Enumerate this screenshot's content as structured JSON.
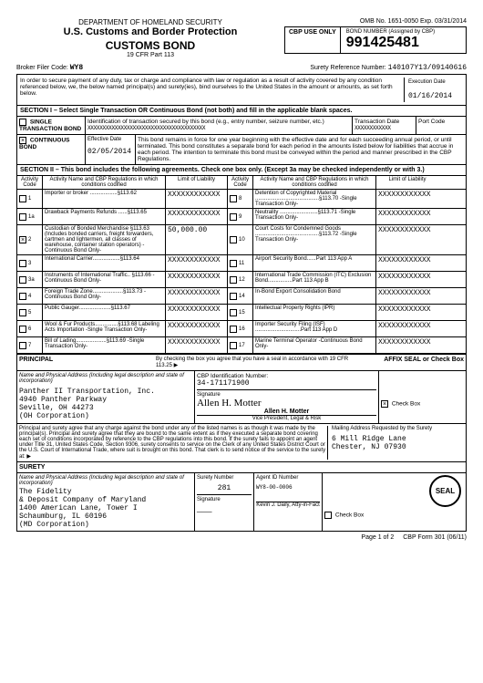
{
  "header": {
    "dept": "DEPARTMENT OF HOMELAND SECURITY",
    "agency": "U.S. Customs and Border Protection",
    "title": "CUSTOMS BOND",
    "cfr": "19 CFR Part 113",
    "omb": "OMB No. 1651-0050 Exp. 03/31/2014",
    "cbp_use": "CBP USE ONLY",
    "bond_label": "BOND NUMBER (Assigned by CBP)",
    "bond_number": "991425481"
  },
  "broker": {
    "filer_label": "Broker Filer Code:",
    "filer_code": "WY8",
    "surety_ref_label": "Surety Reference Number:",
    "surety_ref": "140107Y13/09140616"
  },
  "intro": {
    "text": "In order to secure payment of any duty, tax or charge and compliance with law or regulation as a result of activity covered by any condition referenced below, we, the below named principal(s) and surety(ies), bind ourselves to the United States in the amount or amounts, as set forth below.",
    "exec_label": "Execution Date",
    "exec_date": "01/16/2014"
  },
  "section1": {
    "header": "SECTION I – Select Single Transaction OR Continuous Bond (not both) and fill in the applicable blank spaces.",
    "single_label": "SINGLE TRANSACTION BOND",
    "single_desc": "Identification of transaction secured by this bond (e.g., entry number, seizure number, etc.)",
    "trans_date": "Transaction Date",
    "port_code": "Port Code",
    "continuous_label": "CONTINUOUS BOND",
    "continuous_checked": "×",
    "eff_label": "Effective Date",
    "eff_date": "02/05/2014",
    "cont_desc": "This bond remains in force for one year beginning with the effective date and for each succeeding annual period, or until terminated. This bond constitutes a separate bond for each period in the amounts listed below for liabilities that accrue in each period. The intention to terminate this bond must be conveyed within the period and manner prescribed in the CBP Regulations.",
    "xxx": "XXXXXXXXXXXXXXXXXXXXXXXXXXXXXXXXXXXXXXX",
    "xxx_sm": "XXXXXXXXXXXX"
  },
  "section2": {
    "header": "SECTION II – This bond includes the following agreements. Check one box only. (Except 3a may be checked independently or with 3.)",
    "col_ac": "Activity Code",
    "col_an": "Activity Name and CBP Regulations in which conditions codified",
    "col_ll": "Limit of Liability",
    "rows_left": [
      {
        "code": "1",
        "name": "Importer or broker ..................§113.62",
        "limit": "XXXXXXXXXXXX",
        "chk": ""
      },
      {
        "code": "1a",
        "name": "Drawback Payments Refunds ......§113.65",
        "limit": "XXXXXXXXXXXX",
        "chk": ""
      },
      {
        "code": "2",
        "name": "Custodian of Bonded Merchandise §113.63 (Includes bonded carriers, freight forwarders, cartmen and lightermen, all classes of warehouse, container station operators) -Continuous Bond Only-",
        "limit": "50,000.00",
        "chk": "×"
      },
      {
        "code": "3",
        "name": "International Carrier..................§113.64",
        "limit": "XXXXXXXXXXXX",
        "chk": ""
      },
      {
        "code": "3a",
        "name": "Instruments of International Traffic.. §113.66 -Continuous Bond Only-",
        "limit": "XXXXXXXXXXXX",
        "chk": ""
      },
      {
        "code": "4",
        "name": "Foreign Trade Zone....................§113.73 -Continuous Bond Only-",
        "limit": "XXXXXXXXXXXX",
        "chk": ""
      },
      {
        "code": "5",
        "name": "Public Gauger.....................§113.67",
        "limit": "XXXXXXXXXXXX",
        "chk": ""
      },
      {
        "code": "6",
        "name": "Wool & Fur Products...............§113.68 Labeling Acts Importation -Single Transaction Only-",
        "limit": "XXXXXXXXXXXX",
        "chk": ""
      },
      {
        "code": "7",
        "name": "Bill of Lading....................§113.69 -Single Transaction Only-",
        "limit": "XXXXXXXXXXXX",
        "chk": ""
      }
    ],
    "rows_right": [
      {
        "code": "8",
        "name": "Detention of Copyrighted Material ..........................................§113.70 -Single Transaction Only-",
        "limit": "XXXXXXXXXXXX"
      },
      {
        "code": "9",
        "name": "Neutrality .........................§113.71 -Single Transaction Only-",
        "limit": "XXXXXXXXXXXX"
      },
      {
        "code": "10",
        "name": "Court Costs for Condemned Goods ..........................................§113.72 -Single Transaction Only-",
        "limit": "XXXXXXXXXXXX"
      },
      {
        "code": "11",
        "name": "Airport Security Bond......Part 113 App A",
        "limit": "XXXXXXXXXXXX"
      },
      {
        "code": "12",
        "name": "International Trade Commission (ITC) Exclusion Bond................Part 113 App B",
        "limit": "XXXXXXXXXXXX"
      },
      {
        "code": "14",
        "name": "In-Bond Export Consolidation Bond",
        "limit": "XXXXXXXXXXXX"
      },
      {
        "code": "15",
        "name": "Intellectual Property Rights (IPR)",
        "limit": "XXXXXXXXXXXX"
      },
      {
        "code": "16",
        "name": "Importer Security Filing (ISF) ..............................Part 113 App D",
        "limit": "XXXXXXXXXXXX"
      },
      {
        "code": "17",
        "name": "Marine Terminal Operator -Continuous Bond Only-",
        "limit": "XXXXXXXXXXXX"
      }
    ]
  },
  "principal": {
    "hdr": "PRINCIPAL",
    "check_text": "By checking the box you agree that you have a seal in accordance with 19 CFR 113.25 ▶",
    "affix": "AFFIX SEAL or Check Box",
    "name_label": "Name and Physical Address (Including legal description and state of incorporation)",
    "cbp_id_label": "CBP Identification Number:",
    "cbp_id": "34-171171900",
    "name1": "Panther II Transportation, Inc.",
    "addr1": "4940 Panther Parkway",
    "addr2": "Seville, OH 44273",
    "addr3": "(OH Corporation)",
    "sig_label": "Signature",
    "sig_name": "Allen H. Motter",
    "sig_title": "Vice President, Legal & Risk",
    "checkbox_label": "Check Box",
    "checkbox_val": "×"
  },
  "fine_print": {
    "text": "Principal and surety agree that any charge against the bond under any of the listed names is as though it was made by the principal(s). Principal and surety agree that they are bound to the same extent as if they executed a separate bond covering each set of conditions incorporated by reference to the CBP regulations into this bond. If the surety fails to appoint an agent under Title 31, United States Code, Section 9306, surety consents to service on the Clerk of any United States District Court or the U.S. Court of International Trade, where suit is brought on this bond. That clerk is to send notice of the service to the surety at: ▶",
    "mail_label": "Mailing Address Requested by the Surety",
    "mail1": "6 Mill Ridge Lane",
    "mail2": "Chester, NJ 07930"
  },
  "surety": {
    "hdr": "SURETY",
    "name_label": "Name and Physical Address (Including legal description and state of incorporation)",
    "name1": "The Fidelity",
    "name2": "& Deposit Company of Maryland",
    "addr1": "1400 American Lane, Tower I",
    "addr2": "Schaumburg, IL 60196",
    "addr3": "(MD Corporation)",
    "surety_num_label": "Surety Number",
    "surety_num": "281",
    "agent_label": "Agent ID Number",
    "agent_id": "WY8-00-0006",
    "sig_label": "Signature",
    "sig_name": "Kevin J. Daily, Atty-in-Fact",
    "seal": "SEAL",
    "checkbox_label": "Check Box"
  },
  "footer": {
    "page": "Page 1 of 2",
    "form": "CBP Form 301 (06/11)"
  }
}
